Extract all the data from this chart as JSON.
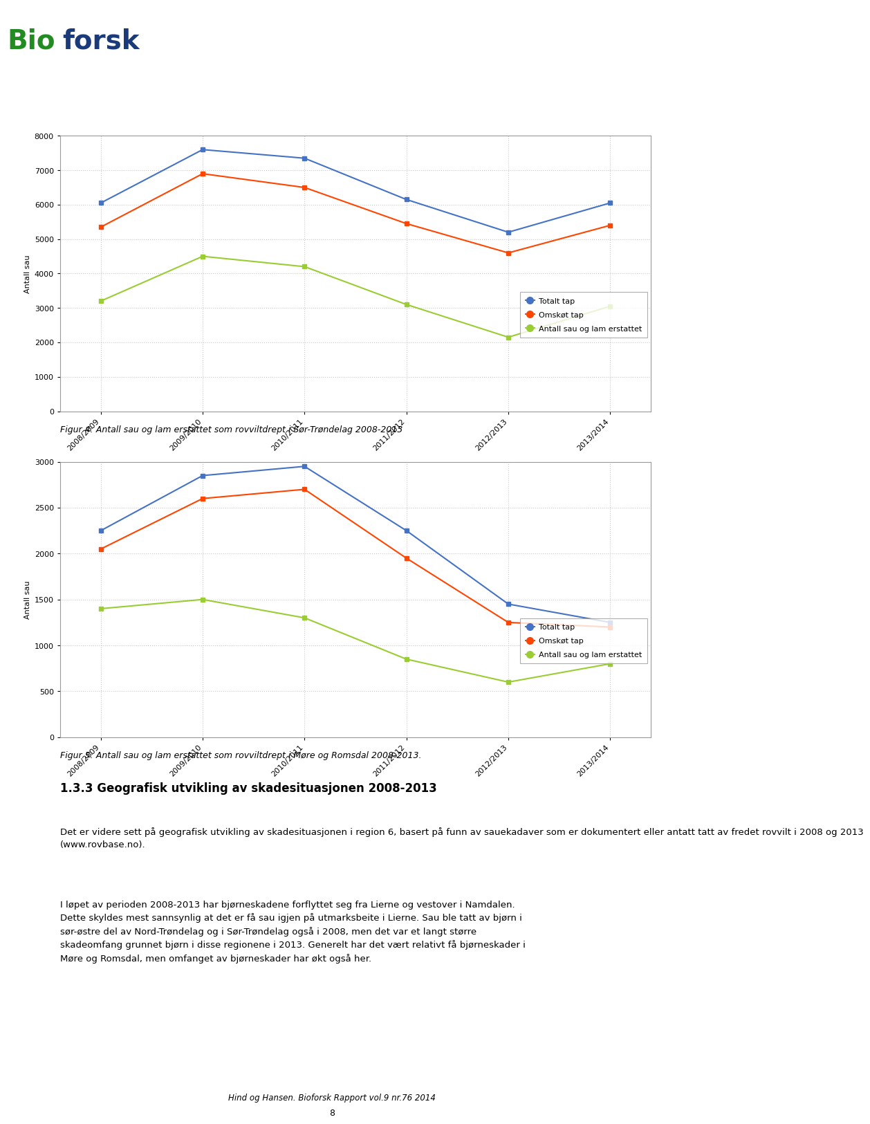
{
  "chart1": {
    "x_labels": [
      "2008/2009",
      "2009/2010",
      "2010/2011",
      "2011/2012",
      "2012/2013",
      "2013/2014"
    ],
    "totalt_tap": [
      6050,
      7600,
      7350,
      6150,
      5200,
      6050
    ],
    "omsokt_tap": [
      5350,
      6900,
      6500,
      5450,
      4600,
      5400
    ],
    "erstattet": [
      3200,
      4500,
      4200,
      3100,
      2150,
      3050
    ],
    "ylabel": "Antall sau",
    "ylim": [
      0,
      8000
    ],
    "yticks": [
      0,
      1000,
      2000,
      3000,
      4000,
      5000,
      6000,
      7000,
      8000
    ],
    "caption": "Figur 4: Antall sau og lam erstattet som rovviltdrept i Sør-Trøndelag 2008-2013"
  },
  "chart2": {
    "x_labels": [
      "2008/2009",
      "2009/2010",
      "2010/2011",
      "2011/2012",
      "2012/2013",
      "2013/2014"
    ],
    "totalt_tap": [
      2250,
      2850,
      2950,
      2250,
      1450,
      1250
    ],
    "omsokt_tap": [
      2050,
      2600,
      2700,
      1950,
      1250,
      1200
    ],
    "erstattet": [
      1400,
      1500,
      1300,
      850,
      600,
      800
    ],
    "ylabel": "Antall sau",
    "ylim": [
      0,
      3000
    ],
    "yticks": [
      0,
      500,
      1000,
      1500,
      2000,
      2500,
      3000
    ],
    "caption": "Figur 5: Antall sau og lam erstattet som rovviltdrept i Møre og Romsdal 2008-2013."
  },
  "legend_labels": [
    "Totalt tap",
    "Omskøt tap",
    "Antall sau og lam erstattet"
  ],
  "colors": {
    "totalt_tap": "#4472C4",
    "omsokt_tap": "#FF4500",
    "erstattet": "#9ACD32"
  },
  "section_title": "1.3.3 Geografisk utvikling av skadesituasjonen 2008-2013",
  "body_para1": "Det er videre sett på geografisk utvikling av skadesituasjonen i region 6, basert på funn av sauekadaver som er dokumentert eller antatt tatt av fredet rovvilt i 2008 og 2013\n(www.rovbase.no).",
  "body_para2": "I løpet av perioden 2008-2013 har bjørneskadene forflyttet seg fra Lierne og vestover i Namdalen.\nDette skyldes mest sannsynlig at det er få sau igjen på utmarksbeite i Lierne. Sau ble tatt av bjørn i\nsør-østre del av Nord-Trøndelag og i Sør-Trøndelag også i 2008, men det var et langt større\nskadeomfang grunnet bjørn i disse regionene i 2013. Generelt har det vært relativt få bjørneskader i\nMøre og Romsdal, men omfanget av bjørneskader har økt også her.",
  "footer_text": "Hind og Hansen. Bioforsk Rapport vol.9 nr.76 2014",
  "footer_page": "8",
  "background_color": "#FFFFFF",
  "chart_bg": "#FFFFFF",
  "grid_color": "#C8C8C8"
}
